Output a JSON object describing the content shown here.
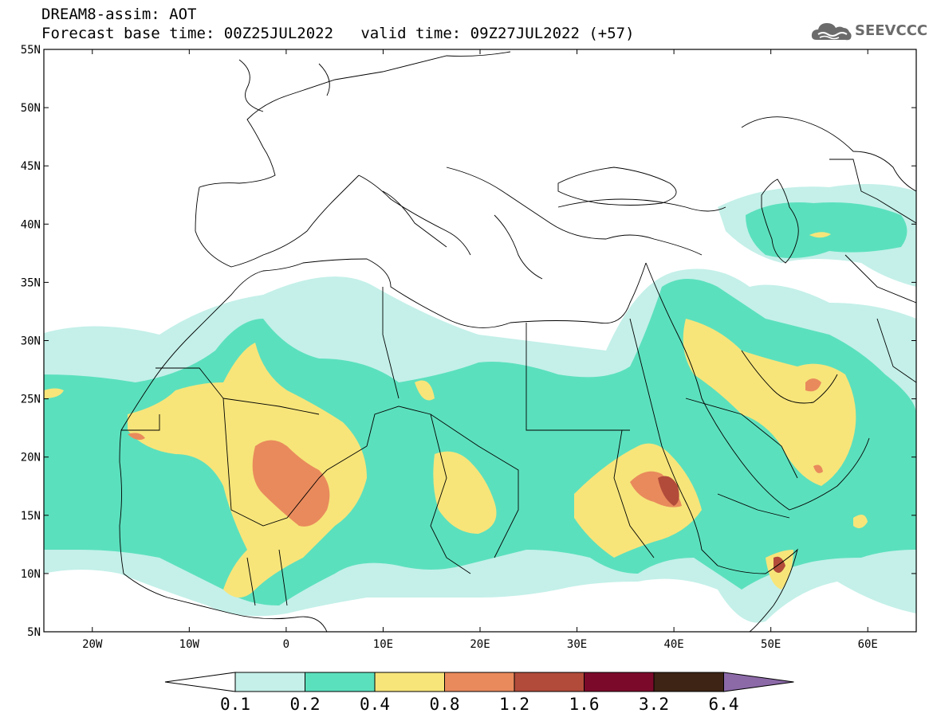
{
  "title": {
    "line1": "DREAM8-assim: AOT",
    "line2": "Forecast base time: 00Z25JUL2022   valid time: 09Z27JUL2022 (+57)"
  },
  "logo": {
    "text": "SEEVCCC",
    "icon": "cloud-icon"
  },
  "axes": {
    "lon_range": [
      -25,
      65
    ],
    "lat_range": [
      5,
      55
    ],
    "lat_ticks": [
      "5N",
      "10N",
      "15N",
      "20N",
      "25N",
      "30N",
      "35N",
      "40N",
      "45N",
      "50N",
      "55N"
    ],
    "lat_values": [
      5,
      10,
      15,
      20,
      25,
      30,
      35,
      40,
      45,
      50,
      55
    ],
    "lon_ticks": [
      "20W",
      "10W",
      "0",
      "10E",
      "20E",
      "30E",
      "40E",
      "50E",
      "60E"
    ],
    "lon_values": [
      -20,
      -10,
      0,
      10,
      20,
      30,
      40,
      50,
      60
    ]
  },
  "colorbar": {
    "levels": [
      "0.1",
      "0.2",
      "0.4",
      "0.8",
      "1.2",
      "1.6",
      "3.2",
      "6.4"
    ],
    "colors": [
      "#ffffff",
      "#c4f0e9",
      "#5be0bd",
      "#f7e57a",
      "#e98a5c",
      "#b24b3a",
      "#7b0a2a",
      "#3d2414",
      "#8c6aa8"
    ]
  },
  "colors": {
    "c1": "#c4f0e9",
    "c2": "#5be0bd",
    "c3": "#f7e57a",
    "c4": "#e98a5c",
    "c5": "#b24b3a",
    "c6": "#7b0a2a"
  }
}
